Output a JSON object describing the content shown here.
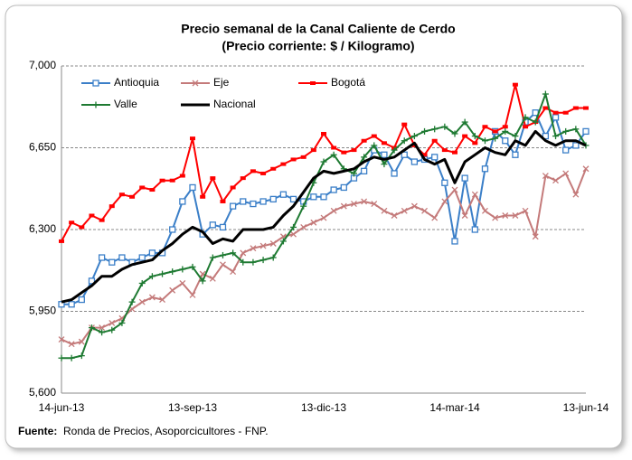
{
  "chart_data": {
    "type": "line",
    "title": "Precio semanal de la Canal Caliente de Cerdo",
    "subtitle": "(Precio corriente: $ / Kilogramo)",
    "source_label": "Fuente:",
    "source": "Ronda de Precios, Asoporcicultores - FNP.",
    "categories": [
      "14-jun-13",
      null,
      null,
      null,
      null,
      null,
      null,
      null,
      null,
      null,
      null,
      null,
      null,
      "13-sep-13",
      null,
      null,
      null,
      null,
      null,
      null,
      null,
      null,
      null,
      null,
      null,
      null,
      "13-dic-13",
      null,
      null,
      null,
      null,
      null,
      null,
      null,
      null,
      null,
      null,
      null,
      null,
      "14-mar-14",
      null,
      null,
      null,
      null,
      null,
      null,
      null,
      null,
      null,
      null,
      null,
      null,
      "13-jun-14"
    ],
    "ylim": [
      5600,
      7000
    ],
    "yticks": [
      {
        "value": 5600,
        "label": "5,600"
      },
      {
        "value": 5950,
        "label": "5,950"
      },
      {
        "value": 6300,
        "label": "6,300"
      },
      {
        "value": 6650,
        "label": "6,650"
      },
      {
        "value": 7000,
        "label": "7,000"
      }
    ],
    "grid": true,
    "series": [
      {
        "name": "Antioquia",
        "color": "#3b7fc8",
        "marker": "square-open",
        "values": [
          5980,
          5980,
          6000,
          6080,
          6180,
          6160,
          6180,
          6160,
          6180,
          6200,
          6200,
          6300,
          6420,
          6480,
          6280,
          6320,
          6310,
          6400,
          6420,
          6410,
          6420,
          6430,
          6450,
          6430,
          6420,
          6440,
          6440,
          6470,
          6480,
          6520,
          6550,
          6640,
          6620,
          6540,
          6620,
          6590,
          6600,
          6610,
          6500,
          6250,
          6520,
          6300,
          6560,
          6720,
          6680,
          6620,
          6760,
          6800,
          6700,
          6780,
          6640,
          6660,
          6720
        ]
      },
      {
        "name": "Eje",
        "color": "#c47a7a",
        "marker": "x",
        "values": [
          5830,
          5810,
          5820,
          5880,
          5880,
          5900,
          5920,
          5960,
          5990,
          6010,
          6000,
          6040,
          6070,
          6020,
          6110,
          6090,
          6150,
          6120,
          6200,
          6220,
          6230,
          6240,
          6270,
          6280,
          6310,
          6330,
          6350,
          6380,
          6400,
          6410,
          6420,
          6410,
          6380,
          6360,
          6380,
          6400,
          6380,
          6350,
          6420,
          6470,
          6360,
          6450,
          6380,
          6350,
          6360,
          6360,
          6380,
          6270,
          6530,
          6510,
          6540,
          6450,
          6560
        ]
      },
      {
        "name": "Bogotá",
        "color": "#ff0000",
        "marker": "dash",
        "values": [
          6250,
          6330,
          6310,
          6360,
          6340,
          6400,
          6450,
          6440,
          6480,
          6470,
          6510,
          6510,
          6530,
          6690,
          6440,
          6520,
          6420,
          6480,
          6520,
          6550,
          6540,
          6560,
          6580,
          6600,
          6610,
          6640,
          6710,
          6650,
          6630,
          6640,
          6680,
          6700,
          6670,
          6650,
          6750,
          6660,
          6620,
          6680,
          6640,
          6630,
          6700,
          6670,
          6740,
          6720,
          6740,
          6920,
          6740,
          6760,
          6820,
          6800,
          6800,
          6820,
          6820
        ]
      },
      {
        "name": "Valle",
        "color": "#1e7a32",
        "marker": "plus",
        "values": [
          5750,
          5750,
          5760,
          5880,
          5860,
          5870,
          5900,
          5990,
          6070,
          6100,
          6110,
          6120,
          6130,
          6140,
          6080,
          6180,
          6190,
          6200,
          6160,
          6160,
          6170,
          6180,
          6250,
          6310,
          6400,
          6500,
          6590,
          6620,
          6560,
          6540,
          6610,
          6660,
          6580,
          6640,
          6680,
          6700,
          6720,
          6730,
          6740,
          6710,
          6760,
          6700,
          6680,
          6690,
          6720,
          6700,
          6780,
          6760,
          6880,
          6700,
          6720,
          6730,
          6660
        ]
      },
      {
        "name": "Nacional",
        "color": "#000000",
        "marker": "none",
        "values": [
          5990,
          6000,
          6030,
          6060,
          6100,
          6100,
          6130,
          6150,
          6160,
          6170,
          6210,
          6240,
          6280,
          6310,
          6290,
          6240,
          6260,
          6250,
          6300,
          6300,
          6300,
          6310,
          6360,
          6400,
          6460,
          6520,
          6550,
          6540,
          6550,
          6560,
          6590,
          6610,
          6600,
          6610,
          6640,
          6670,
          6600,
          6580,
          6600,
          6500,
          6590,
          6620,
          6650,
          6630,
          6620,
          6680,
          6660,
          6720,
          6680,
          6660,
          6680,
          6680,
          6660
        ]
      }
    ]
  }
}
